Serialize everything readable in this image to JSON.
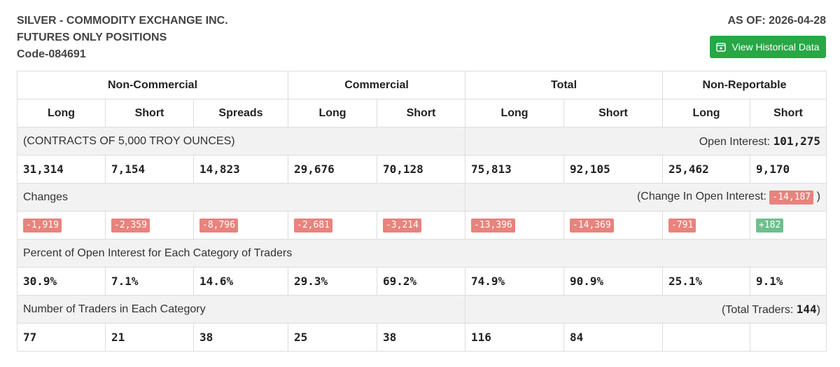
{
  "header": {
    "line1": "SILVER - COMMODITY EXCHANGE INC.",
    "line2": "FUTURES ONLY POSITIONS",
    "code": "Code-084691",
    "as_of": "AS OF: 2026-04-28",
    "history_button": "View Historical Data",
    "history_icon": "calendar-plus-icon"
  },
  "groups": [
    "Non-Commercial",
    "Commercial",
    "Total",
    "Non-Reportable"
  ],
  "columns": [
    "Long",
    "Short",
    "Spreads",
    "Long",
    "Short",
    "Long",
    "Short",
    "Long",
    "Short"
  ],
  "contracts": {
    "label": "(CONTRACTS OF 5,000 TROY OUNCES)",
    "oi_label": "Open Interest:",
    "oi_value": "101,275",
    "values": [
      "31,314",
      "7,154",
      "14,823",
      "29,676",
      "70,128",
      "75,813",
      "92,105",
      "25,462",
      "9,170"
    ]
  },
  "changes": {
    "label": "Changes",
    "oi_prefix": "(Change In Open Interest:",
    "oi_value": "-14,187",
    "oi_suffix": ")",
    "values": [
      "-1,919",
      "-2,359",
      "-8,796",
      "-2,681",
      "-3,214",
      "-13,396",
      "-14,369",
      "-791",
      "+182"
    ]
  },
  "percent": {
    "label": "Percent of Open Interest for Each Category of Traders",
    "values": [
      "30.9%",
      "7.1%",
      "14.6%",
      "29.3%",
      "69.2%",
      "74.9%",
      "90.9%",
      "25.1%",
      "9.1%"
    ]
  },
  "traders": {
    "label": "Number of Traders in Each Category",
    "total_prefix": "(Total Traders:",
    "total_value": "144",
    "total_suffix": ")",
    "values": [
      "77",
      "21",
      "38",
      "25",
      "38",
      "116",
      "84",
      "",
      ""
    ]
  },
  "colors": {
    "button": "#28a745",
    "negative": "#e8837d",
    "positive": "#6fbf8e",
    "band": "#f2f2f2"
  }
}
